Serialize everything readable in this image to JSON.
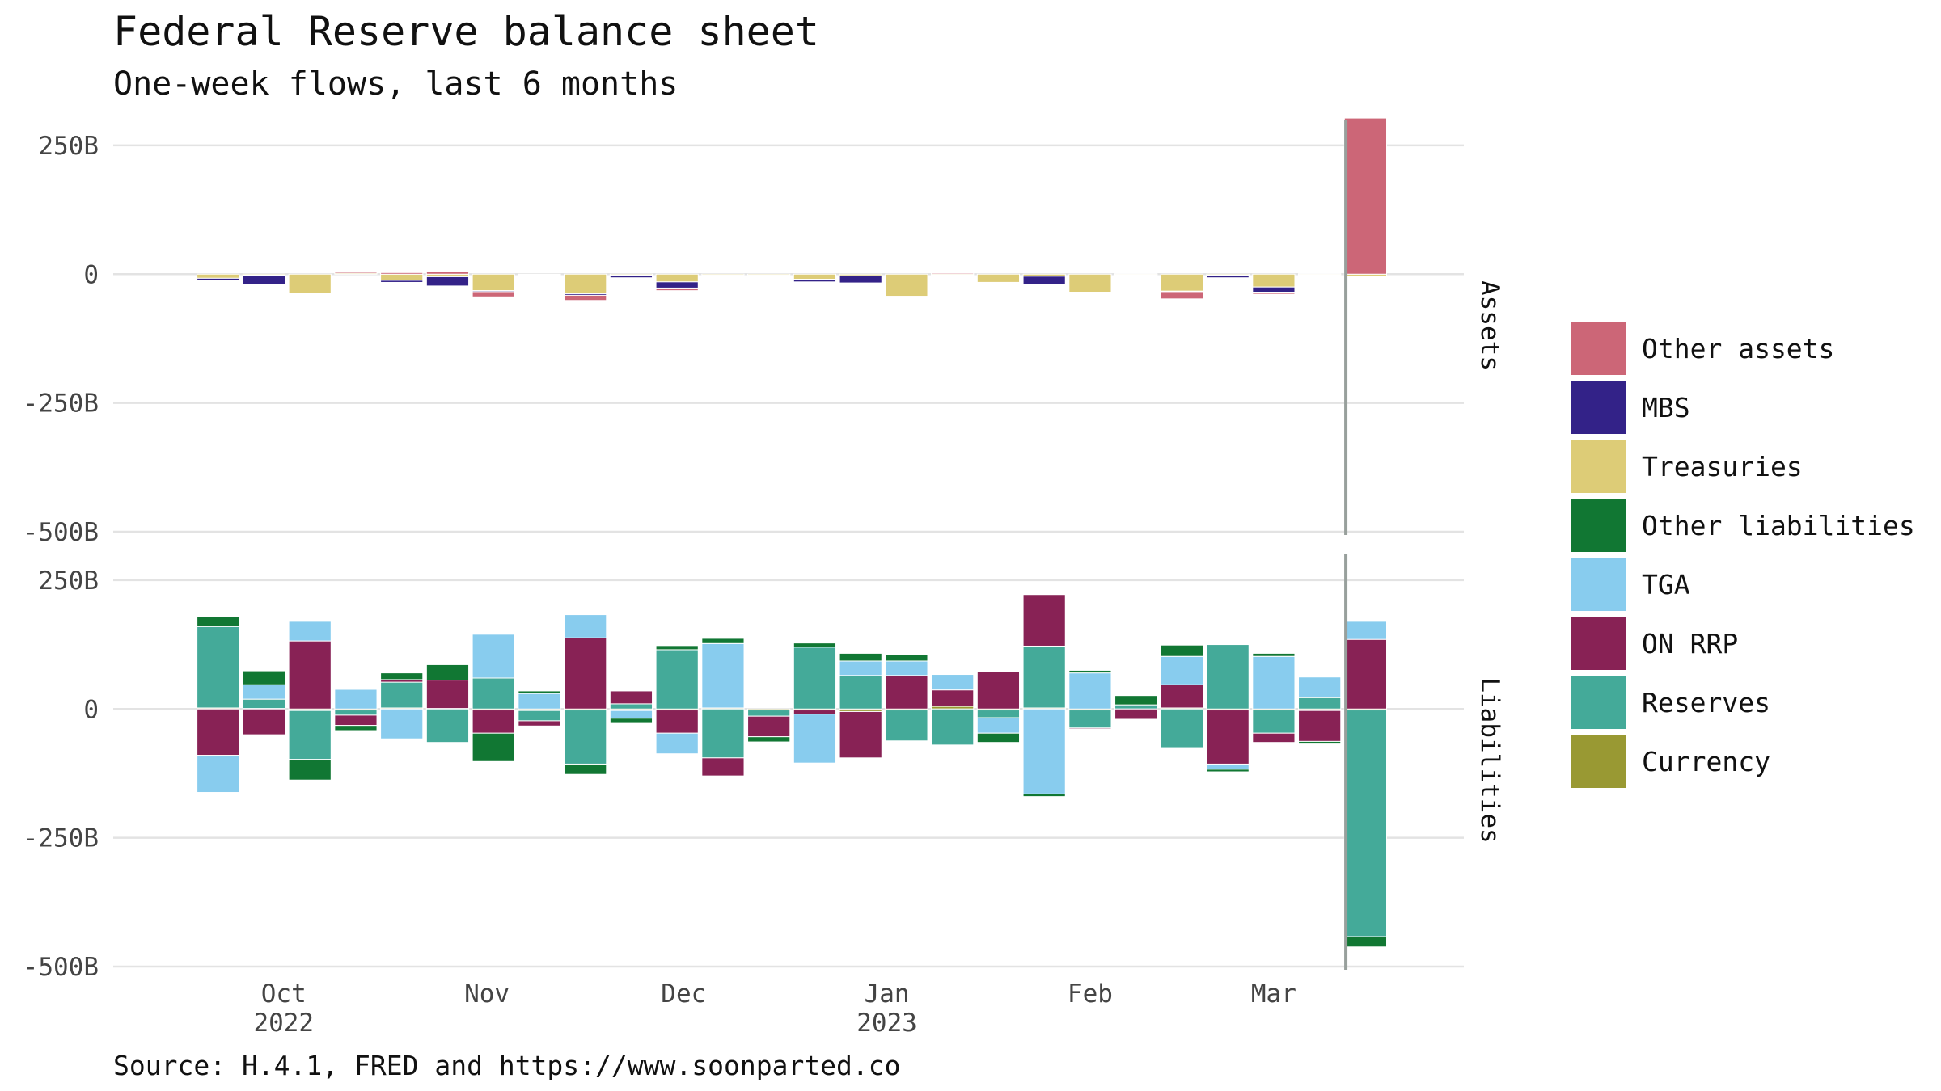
{
  "title": "Federal Reserve balance sheet",
  "subtitle": "One-week flows, last 6 months",
  "caption": "Source: H.4.1, FRED and https://www.soonparted.co",
  "chart_data": {
    "type": "bar",
    "stacked": true,
    "facets": [
      "Assets",
      "Liabilities"
    ],
    "y_unit": "billions USD",
    "ylim": [
      -500,
      300
    ],
    "y_ticks": [
      {
        "value": 250,
        "label": "250B"
      },
      {
        "value": 0,
        "label": "0"
      },
      {
        "value": -250,
        "label": "-250B"
      },
      {
        "value": -500,
        "label": "-500B"
      }
    ],
    "x_ticks": [
      {
        "label": "Oct",
        "sub": "2022",
        "date": "2022-10-01"
      },
      {
        "label": "Nov",
        "sub": "",
        "date": "2022-11-01"
      },
      {
        "label": "Dec",
        "sub": "",
        "date": "2022-12-01"
      },
      {
        "label": "Jan",
        "sub": "2023",
        "date": "2023-01-01"
      },
      {
        "label": "Feb",
        "sub": "",
        "date": "2023-02-01"
      },
      {
        "label": "Mar",
        "sub": "",
        "date": "2023-03-01"
      }
    ],
    "x_range": [
      "2022-09-05",
      "2023-03-30"
    ],
    "reference_line": "2023-03-12",
    "weeks": [
      "2022-09-21",
      "2022-09-28",
      "2022-10-05",
      "2022-10-12",
      "2022-10-19",
      "2022-10-26",
      "2022-11-02",
      "2022-11-09",
      "2022-11-16",
      "2022-11-23",
      "2022-11-30",
      "2022-12-07",
      "2022-12-14",
      "2022-12-21",
      "2022-12-28",
      "2023-01-04",
      "2023-01-11",
      "2023-01-18",
      "2023-01-25",
      "2023-02-01",
      "2023-02-08",
      "2023-02-15",
      "2023-02-22",
      "2023-03-01",
      "2023-03-08",
      "2023-03-15"
    ],
    "legend": [
      {
        "name": "Other assets",
        "color": "#CC6677"
      },
      {
        "name": "MBS",
        "color": "#332288"
      },
      {
        "name": "Treasuries",
        "color": "#DDCC77"
      },
      {
        "name": "Other liabilities",
        "color": "#117733"
      },
      {
        "name": "TGA",
        "color": "#88CCEE"
      },
      {
        "name": "ON RRP",
        "color": "#882255"
      },
      {
        "name": "Reserves",
        "color": "#44AA99"
      },
      {
        "name": "Currency",
        "color": "#999933"
      }
    ],
    "assets_series": [
      {
        "name": "Treasuries",
        "values": [
          -8,
          -2,
          -38,
          2,
          -12,
          -5,
          -32,
          -1,
          -38,
          -2,
          -15,
          -2,
          -2,
          -10,
          -3,
          -43,
          -2,
          -16,
          -4,
          -35,
          -2,
          -33,
          -2,
          -25,
          -2,
          -5
        ]
      },
      {
        "name": "MBS",
        "values": [
          -4,
          -18,
          0,
          0,
          -4,
          -18,
          -2,
          0,
          -3,
          -5,
          -12,
          0,
          0,
          -5,
          -14,
          -2,
          -2,
          -1,
          -16,
          -2,
          -1,
          -1,
          -5,
          -10,
          -1,
          -1
        ]
      },
      {
        "name": "Other assets",
        "values": [
          0,
          0,
          -1,
          3,
          3,
          5,
          -10,
          -1,
          -10,
          0,
          -5,
          0,
          0,
          0,
          0,
          0,
          2,
          0,
          0,
          0,
          1,
          -14,
          0,
          -4,
          1,
          303
        ]
      }
    ],
    "liabilities_series": [
      {
        "name": "Currency",
        "values": [
          2,
          1,
          -3,
          -2,
          2,
          1,
          -2,
          -3,
          -2,
          -3,
          -2,
          2,
          -2,
          -2,
          -5,
          -2,
          5,
          -2,
          2,
          -2,
          0,
          2,
          -2,
          -2,
          -3,
          -2
        ]
      },
      {
        "name": "Reserves",
        "values": [
          158,
          18,
          -95,
          -10,
          50,
          -65,
          60,
          -20,
          -105,
          10,
          115,
          -95,
          -12,
          120,
          65,
          -60,
          -70,
          -15,
          120,
          -35,
          8,
          -75,
          125,
          -45,
          22,
          -440
        ]
      },
      {
        "name": "ON RRP",
        "values": [
          -90,
          -50,
          132,
          -20,
          5,
          55,
          -45,
          -10,
          138,
          25,
          -45,
          -35,
          -40,
          -8,
          -90,
          65,
          32,
          72,
          100,
          -2,
          -20,
          45,
          -105,
          -18,
          -60,
          135
        ]
      },
      {
        "name": "TGA",
        "values": [
          -72,
          28,
          38,
          38,
          -58,
          0,
          85,
          30,
          45,
          -15,
          -40,
          125,
          0,
          -95,
          28,
          28,
          30,
          -30,
          -165,
          70,
          0,
          55,
          -10,
          102,
          40,
          35
        ]
      },
      {
        "name": "Other liabilities",
        "values": [
          20,
          27,
          -40,
          -10,
          13,
          30,
          -55,
          5,
          -20,
          -10,
          8,
          10,
          -10,
          8,
          15,
          13,
          0,
          -18,
          -5,
          5,
          18,
          22,
          -5,
          6,
          -5,
          -20
        ]
      }
    ]
  }
}
